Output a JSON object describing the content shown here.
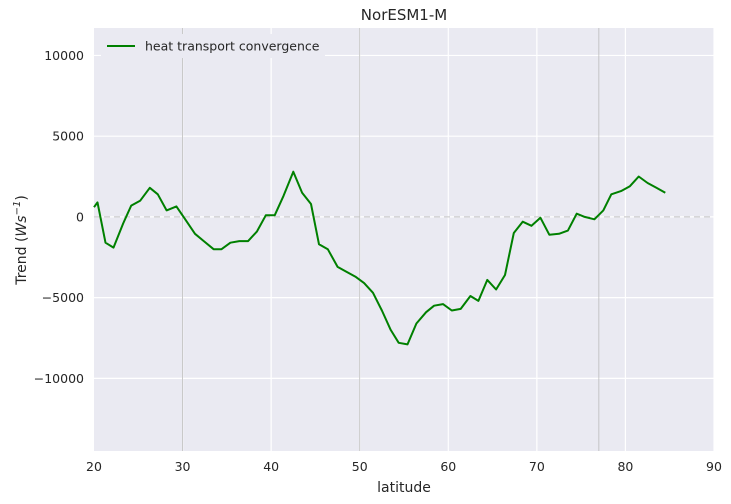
{
  "chart_data": {
    "type": "line",
    "title": "NorESM1-M",
    "xlabel": "latitude",
    "ylabel_prefix": "Trend (",
    "ylabel_var": "Ws",
    "ylabel_sup": "−1",
    "ylabel_suffix": ")",
    "xlim": [
      20,
      90
    ],
    "ylim": [
      -14500,
      11700
    ],
    "xticks": [
      20,
      30,
      40,
      50,
      60,
      70,
      80,
      90
    ],
    "xtick_labels": [
      "20",
      "30",
      "40",
      "50",
      "60",
      "70",
      "80",
      "90"
    ],
    "yticks": [
      -10000,
      -5000,
      0,
      5000,
      10000
    ],
    "ytick_labels": [
      "−10000",
      "−5000",
      "0",
      "5000",
      "10000"
    ],
    "vertical_lines": [
      30,
      50,
      77
    ],
    "zero_line": true,
    "grid": true,
    "legend_position": "top-left",
    "series": [
      {
        "name": "heat transport convergence",
        "color": "#008000",
        "x": [
          20.0,
          20.4,
          21.3,
          22.2,
          23.3,
          24.2,
          25.2,
          26.3,
          27.2,
          28.2,
          29.3,
          30.3,
          31.4,
          32.4,
          33.5,
          34.4,
          35.4,
          36.4,
          37.4,
          38.4,
          39.4,
          40.4,
          41.4,
          42.5,
          43.5,
          44.5,
          45.4,
          46.4,
          47.5,
          48.5,
          49.5,
          50.5,
          51.5,
          52.5,
          53.5,
          54.4,
          55.4,
          56.4,
          57.5,
          58.4,
          59.4,
          60.4,
          61.4,
          62.5,
          63.4,
          64.4,
          65.4,
          66.4,
          67.4,
          68.4,
          69.4,
          70.4,
          71.4,
          72.5,
          73.5,
          74.5,
          75.4,
          76.5,
          77.5,
          78.4,
          79.5,
          80.5,
          81.5,
          82.5,
          83.5,
          84.5
        ],
        "y": [
          600,
          900,
          -1600,
          -1900,
          -400,
          700,
          1000,
          1800,
          1400,
          400,
          650,
          -150,
          -1050,
          -1500,
          -2000,
          -2000,
          -1600,
          -1500,
          -1500,
          -900,
          100,
          100,
          1300,
          2800,
          1500,
          800,
          -1700,
          -2000,
          -3100,
          -3400,
          -3700,
          -4100,
          -4700,
          -5800,
          -7000,
          -7800,
          -7900,
          -6600,
          -5900,
          -5500,
          -5400,
          -5800,
          -5700,
          -4900,
          -5200,
          -3900,
          -4500,
          -3600,
          -1000,
          -300,
          -550,
          -50,
          -1100,
          -1050,
          -850,
          200,
          0,
          -150,
          400,
          1400,
          1600,
          1900,
          2500,
          2100,
          1800,
          1500
        ]
      }
    ]
  }
}
